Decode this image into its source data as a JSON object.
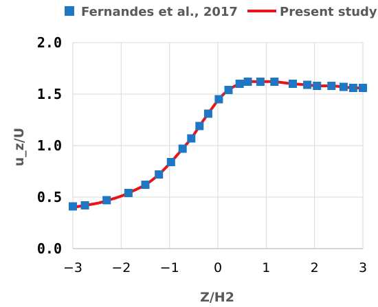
{
  "chart_data": {
    "type": "scatter",
    "title": "",
    "xlabel": "Z/H2",
    "ylabel": "u_z/U",
    "xlim": [
      -3,
      3
    ],
    "ylim": [
      0,
      2
    ],
    "x_ticks": [
      -3,
      -2,
      -1,
      0,
      1,
      2,
      3
    ],
    "x_tick_labels": [
      "−3",
      "−2",
      "−1",
      "0",
      "1",
      "2",
      "3"
    ],
    "y_ticks": [
      0,
      0.5,
      1,
      1.5,
      2
    ],
    "y_tick_labels": [
      "0.0",
      "0.5",
      "1.0",
      "1.5",
      "2.0"
    ],
    "grid": true,
    "legend_position": "top",
    "colors": {
      "marker": "#1f77c4",
      "line": "#e8141a",
      "grid": "#d9d9d9"
    },
    "series": [
      {
        "name": "Fernandes et al., 2017",
        "kind": "markers",
        "x": [
          -3.0,
          -2.75,
          -2.3,
          -1.85,
          -1.5,
          -1.22,
          -0.97,
          -0.73,
          -0.55,
          -0.38,
          -0.2,
          0.02,
          0.22,
          0.45,
          0.62,
          0.88,
          1.17,
          1.55,
          1.85,
          2.05,
          2.35,
          2.6,
          2.8,
          3.0
        ],
        "y": [
          0.41,
          0.42,
          0.47,
          0.54,
          0.62,
          0.72,
          0.84,
          0.97,
          1.07,
          1.19,
          1.31,
          1.45,
          1.54,
          1.6,
          1.62,
          1.62,
          1.62,
          1.6,
          1.59,
          1.58,
          1.58,
          1.57,
          1.56,
          1.56
        ]
      },
      {
        "name": "Present study",
        "kind": "line",
        "x": [
          -3.0,
          -2.75,
          -2.5,
          -2.3,
          -2.0,
          -1.85,
          -1.5,
          -1.22,
          -0.97,
          -0.73,
          -0.55,
          -0.38,
          -0.2,
          0.02,
          0.22,
          0.45,
          0.62,
          0.88,
          1.17,
          1.55,
          1.85,
          2.05,
          2.35,
          2.6,
          2.8,
          3.0
        ],
        "y": [
          0.4,
          0.42,
          0.44,
          0.465,
          0.51,
          0.54,
          0.62,
          0.72,
          0.84,
          0.97,
          1.07,
          1.19,
          1.31,
          1.45,
          1.54,
          1.6,
          1.62,
          1.62,
          1.62,
          1.6,
          1.59,
          1.58,
          1.58,
          1.57,
          1.56,
          1.56
        ]
      }
    ]
  }
}
